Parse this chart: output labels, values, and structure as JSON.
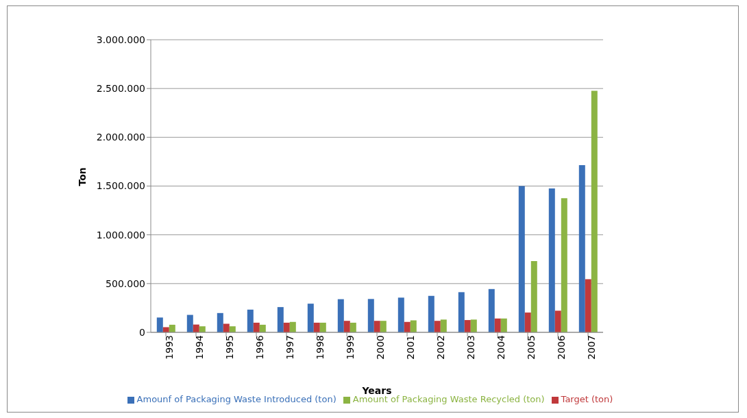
{
  "chart_data": {
    "type": "bar",
    "xlabel": "Years",
    "ylabel": "Ton",
    "categories": [
      "1993",
      "1994",
      "1995",
      "1996",
      "1997",
      "1998",
      "1999",
      "2000",
      "2001",
      "2002",
      "2003",
      "2004",
      "2005",
      "2006",
      "2007"
    ],
    "series": [
      {
        "name": "Amounf of Packaging Waste Introduced (ton)",
        "color": "#3a70b8",
        "values": [
          152000,
          179000,
          198000,
          233000,
          259000,
          294000,
          340000,
          342000,
          356000,
          374000,
          412000,
          444000,
          1500000,
          1475000,
          1714000
        ]
      },
      {
        "name": "Target (ton)",
        "color": "#c0393b",
        "values": [
          53000,
          80000,
          88000,
          99000,
          99000,
          99000,
          118000,
          118000,
          107000,
          118000,
          126000,
          142000,
          203000,
          222000,
          545000
        ]
      },
      {
        "name": "Amount of Packaging Waste Recycled (ton)",
        "color": "#8cb443",
        "values": [
          78000,
          62000,
          62000,
          78000,
          107000,
          99000,
          99000,
          118000,
          123000,
          131000,
          131000,
          142000,
          730000,
          1375000,
          2476000
        ]
      }
    ],
    "ylim": [
      0,
      3000000
    ],
    "yticks": [
      0,
      {
        "value": 500000,
        "label": "500.000"
      },
      {
        "value": 1000000,
        "label": "1.000.000"
      },
      {
        "value": 1500000,
        "label": "1.500.000"
      },
      {
        "value": 2000000,
        "label": "2.000.000"
      },
      {
        "value": 2500000,
        "label": "2.500.000"
      },
      {
        "value": 3000000,
        "label": "3.000.000"
      }
    ],
    "grid": "y",
    "legend": "bottom"
  }
}
